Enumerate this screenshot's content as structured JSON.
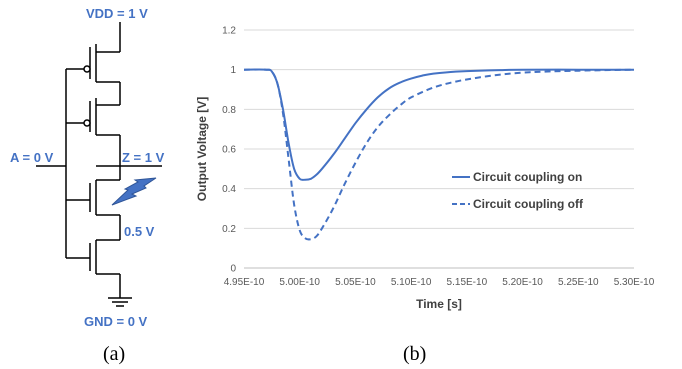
{
  "schematic": {
    "vdd_label": "VDD = 1 V",
    "gnd_label": "GND = 0 V",
    "input_label": "A = 0 V",
    "output_label": "Z = 1 V",
    "node_label": "0.5 V",
    "caption": "(a)",
    "colors": {
      "label": "#4472c4",
      "strike": "#4472c4"
    },
    "icons": [
      "pmos-transistor",
      "nmos-transistor",
      "lightning-bolt",
      "ground-symbol"
    ]
  },
  "chart_caption": "(b)",
  "chart_data": {
    "type": "line",
    "title": "",
    "xlabel": "Time [s]",
    "ylabel": "Output Voltage [V]",
    "xlim": [
      4.95e-10,
      5.3e-10
    ],
    "ylim": [
      0,
      1.2
    ],
    "x_ticks": [
      "4.95E-10",
      "5.00E-10",
      "5.05E-10",
      "5.10E-10",
      "5.15E-10",
      "5.20E-10",
      "5.25E-10",
      "5.30E-10"
    ],
    "y_ticks": [
      "0",
      "0.2",
      "0.4",
      "0.6",
      "0.8",
      "1",
      "1.2"
    ],
    "grid": "horizontal",
    "legend_position": "right",
    "series": [
      {
        "name": "Circuit coupling on",
        "style": "solid",
        "color": "#4472c4",
        "x": [
          4.95e-10,
          4.97e-10,
          4.975e-10,
          4.98e-10,
          4.985e-10,
          4.99e-10,
          4.995e-10,
          5e-10,
          5.005e-10,
          5.01e-10,
          5.015e-10,
          5.02e-10,
          5.03e-10,
          5.04e-10,
          5.05e-10,
          5.06e-10,
          5.07e-10,
          5.08e-10,
          5.09e-10,
          5.1e-10,
          5.11e-10,
          5.12e-10,
          5.14e-10,
          5.16e-10,
          5.18e-10,
          5.2e-10,
          5.25e-10,
          5.3e-10
        ],
        "y": [
          1.0,
          1.0,
          0.99,
          0.93,
          0.8,
          0.63,
          0.5,
          0.45,
          0.445,
          0.45,
          0.47,
          0.5,
          0.57,
          0.65,
          0.73,
          0.8,
          0.86,
          0.905,
          0.935,
          0.955,
          0.97,
          0.98,
          0.99,
          0.995,
          0.998,
          1.0,
          1.0,
          1.0
        ]
      },
      {
        "name": "Circuit coupling off",
        "style": "dashed",
        "color": "#4472c4",
        "x": [
          4.95e-10,
          4.97e-10,
          4.975e-10,
          4.98e-10,
          4.985e-10,
          4.99e-10,
          4.995e-10,
          5e-10,
          5.005e-10,
          5.01e-10,
          5.015e-10,
          5.02e-10,
          5.03e-10,
          5.04e-10,
          5.05e-10,
          5.06e-10,
          5.07e-10,
          5.08e-10,
          5.09e-10,
          5.1e-10,
          5.12e-10,
          5.14e-10,
          5.16e-10,
          5.18e-10,
          5.2e-10,
          5.22e-10,
          5.25e-10,
          5.3e-10
        ],
        "y": [
          1.0,
          1.0,
          0.99,
          0.93,
          0.78,
          0.55,
          0.32,
          0.19,
          0.15,
          0.145,
          0.16,
          0.2,
          0.3,
          0.42,
          0.53,
          0.63,
          0.71,
          0.77,
          0.82,
          0.86,
          0.91,
          0.94,
          0.96,
          0.975,
          0.985,
          0.99,
          0.995,
          1.0
        ]
      }
    ]
  }
}
